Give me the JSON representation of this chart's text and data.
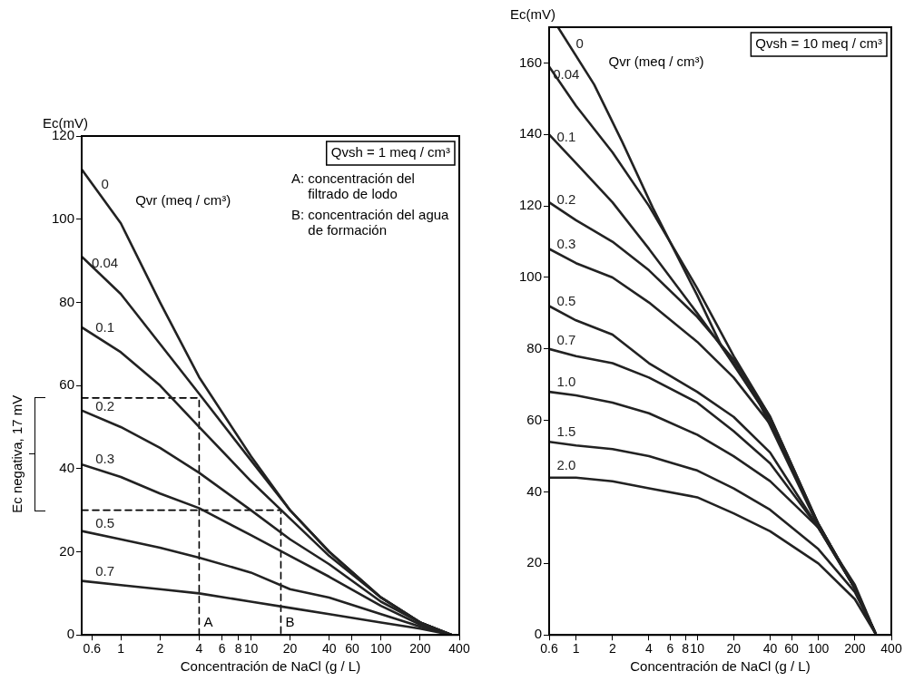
{
  "chart_data": [
    {
      "type": "line",
      "xlabel": "Concentración de NaCl (g / L)",
      "ylabel": "Ec(mV)",
      "subtitle": "Qvsh = 1 meq / cm³",
      "legend_title": "Qvr (meq / cm³)",
      "log": "x",
      "marker": "none",
      "xlim": [
        0.5,
        400
      ],
      "xticks": [
        0.6,
        1,
        2,
        4,
        6,
        8,
        10,
        20,
        40,
        60,
        100,
        200,
        400
      ],
      "ylim": [
        0,
        120
      ],
      "yticks": [
        0,
        20,
        40,
        60,
        80,
        100,
        120
      ],
      "annotations": [
        "A: concentración del filtrado de lodo",
        "B: concentración del agua de formación",
        "Ec negativa, 17 mV"
      ],
      "x": [
        0.5,
        1,
        2,
        4,
        10,
        20,
        40,
        100,
        200,
        350
      ],
      "series": [
        {
          "name": "0",
          "color": "#222222",
          "values": [
            112,
            99,
            80,
            62,
            43,
            30,
            20,
            9,
            3,
            0
          ]
        },
        {
          "name": "0.04",
          "color": "#222222",
          "values": [
            91,
            82,
            70,
            58,
            42,
            30,
            20,
            9,
            3,
            0
          ]
        },
        {
          "name": "0.1",
          "color": "#222222",
          "values": [
            74,
            68,
            60,
            50,
            37,
            28,
            19,
            9,
            3,
            0
          ]
        },
        {
          "name": "0.2",
          "color": "#222222",
          "values": [
            54,
            50,
            45,
            39,
            30,
            23,
            17,
            8,
            3,
            0
          ]
        },
        {
          "name": "0.3",
          "color": "#222222",
          "values": [
            41,
            38,
            34,
            30.5,
            24,
            19,
            14,
            7,
            2.5,
            0
          ]
        },
        {
          "name": "0.5",
          "color": "#222222",
          "values": [
            25,
            23,
            21,
            18.6,
            15,
            11,
            9,
            5,
            2,
            0
          ]
        },
        {
          "name": "0.7",
          "color": "#222222",
          "values": [
            13,
            12,
            11,
            10,
            8,
            6.5,
            5,
            3,
            1.5,
            0
          ]
        },
        {
          "name": "A",
          "color": "#000000",
          "line_style": "dashed",
          "x": [
            0.5,
            4,
            4
          ],
          "values": [
            57,
            57,
            0
          ]
        },
        {
          "name": "B",
          "color": "#000000",
          "line_style": "dashed",
          "x": [
            0.5,
            17,
            17
          ],
          "values": [
            30,
            30,
            0
          ]
        }
      ]
    },
    {
      "type": "line",
      "xlabel": "Concentración de NaCl (g / L)",
      "ylabel": "Ec(mV)",
      "subtitle": "Qvsh = 10 meq / cm³",
      "legend_title": "Qvr (meq / cm³)",
      "log": "x",
      "marker": "none",
      "xlim": [
        0.6,
        400
      ],
      "xticks": [
        0.6,
        1,
        2,
        4,
        6,
        8,
        10,
        20,
        40,
        60,
        100,
        200,
        400
      ],
      "ylim": [
        0,
        170
      ],
      "yticks": [
        0,
        20,
        40,
        60,
        80,
        100,
        120,
        140,
        160
      ],
      "x": [
        0.6,
        1,
        2,
        4,
        10,
        20,
        40,
        100,
        200,
        300
      ],
      "series": [
        {
          "name": "0",
          "color": "#222222",
          "x": [
            0.71,
            1.41,
            2.4,
            4.3,
            10,
            16,
            33,
            98,
            200,
            300
          ],
          "values": [
            170,
            154,
            138,
            119.5,
            95,
            80.5,
            64.5,
            31,
            13,
            0
          ]
        },
        {
          "name": "0.04",
          "color": "#222222",
          "values": [
            159,
            148,
            135,
            120,
            97,
            78,
            61,
            31,
            13,
            0
          ]
        },
        {
          "name": "0.1",
          "color": "#222222",
          "values": [
            140,
            132,
            121,
            108,
            90,
            76,
            60,
            31,
            13,
            0
          ]
        },
        {
          "name": "0.2",
          "color": "#222222",
          "values": [
            121,
            116,
            110,
            102,
            89,
            77,
            61,
            31,
            13,
            0
          ]
        },
        {
          "name": "0.3",
          "color": "#222222",
          "values": [
            108,
            104,
            100,
            93,
            82,
            72,
            59,
            31,
            13,
            0
          ]
        },
        {
          "name": "0.5",
          "color": "#222222",
          "values": [
            92,
            88,
            84,
            76,
            68,
            61,
            51,
            30,
            13,
            0
          ]
        },
        {
          "name": "0.7",
          "color": "#222222",
          "values": [
            80,
            78,
            76,
            72,
            65,
            57,
            48,
            30,
            13,
            0
          ]
        },
        {
          "name": "1.0",
          "color": "#222222",
          "values": [
            68,
            67,
            65,
            62,
            56,
            50,
            43,
            30,
            14,
            0
          ]
        },
        {
          "name": "1.5",
          "color": "#222222",
          "values": [
            54,
            53,
            52,
            50,
            46,
            41,
            35,
            24,
            12,
            0
          ]
        },
        {
          "name": "2.0",
          "color": "#222222",
          "values": [
            44,
            44,
            43,
            41,
            38.5,
            34,
            29,
            20,
            10,
            0
          ]
        }
      ]
    }
  ]
}
